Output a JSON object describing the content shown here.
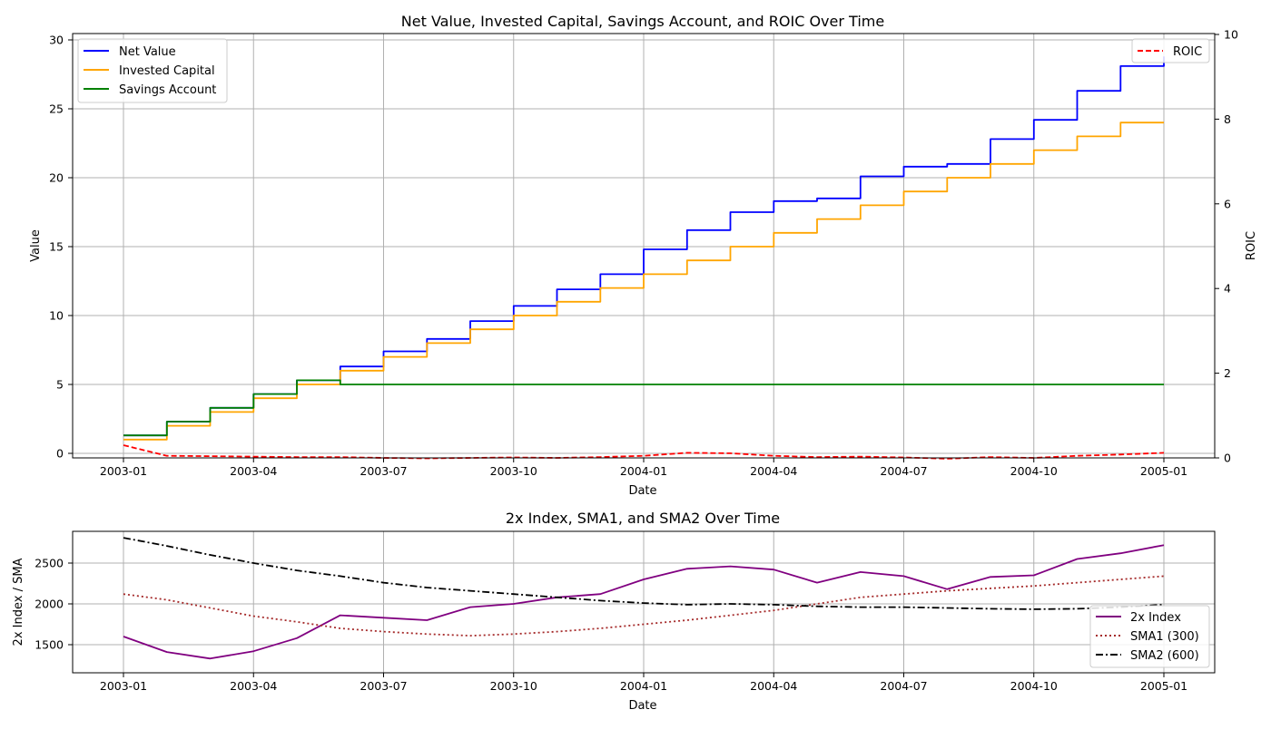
{
  "top_chart": {
    "title": "Net Value, Invested Capital, Savings Account, and ROIC Over Time",
    "xlabel": "Date",
    "ylabel_left": "Value",
    "ylabel_right": "ROIC",
    "x_ticks": [
      "2003-01",
      "2003-04",
      "2003-07",
      "2003-10",
      "2004-01",
      "2004-04",
      "2004-07",
      "2004-10",
      "2005-01"
    ],
    "y_ticks_left": [
      "0",
      "5",
      "10",
      "15",
      "20",
      "25",
      "30"
    ],
    "y_ticks_right": [
      "0",
      "2",
      "4",
      "6",
      "8",
      "10"
    ],
    "legend_left": [
      "Net Value",
      "Invested Capital",
      "Savings Account"
    ],
    "legend_right": [
      "ROIC"
    ]
  },
  "bottom_chart": {
    "title": "2x Index, SMA1, and SMA2 Over Time",
    "xlabel": "Date",
    "ylabel": "2x Index / SMA",
    "x_ticks": [
      "2003-01",
      "2003-04",
      "2003-07",
      "2003-10",
      "2004-01",
      "2004-04",
      "2004-07",
      "2004-10",
      "2005-01"
    ],
    "y_ticks": [
      "1500",
      "2000",
      "2500"
    ],
    "legend": [
      "2x Index",
      "SMA1 (300)",
      "SMA2 (600)"
    ]
  },
  "chart_data": [
    {
      "type": "line",
      "title": "Net Value, Invested Capital, Savings Account, and ROIC Over Time",
      "xlabel": "Date",
      "ylabel": "Value",
      "y2label": "ROIC",
      "ylim": [
        -0.3,
        30.5
      ],
      "y2lim": [
        0,
        10
      ],
      "grid": true,
      "legend_placement": "top-left",
      "legend2_placement": "top-right",
      "x": [
        "2003-01",
        "2003-02",
        "2003-03",
        "2003-04",
        "2003-05",
        "2003-06",
        "2003-07",
        "2003-08",
        "2003-09",
        "2003-10",
        "2003-11",
        "2003-12",
        "2004-01",
        "2004-02",
        "2004-03",
        "2004-04",
        "2004-05",
        "2004-06",
        "2004-07",
        "2004-08",
        "2004-09",
        "2004-10",
        "2004-11",
        "2004-12",
        "2005-01"
      ],
      "series": [
        {
          "name": "Net Value",
          "color": "#0000ff",
          "axis": "left",
          "style": "solid",
          "values": [
            1.3,
            2.3,
            3.3,
            4.3,
            5.3,
            6.3,
            7.4,
            8.3,
            9.6,
            10.7,
            11.9,
            13.0,
            14.8,
            16.2,
            17.5,
            18.3,
            18.5,
            20.1,
            20.8,
            21.0,
            22.8,
            24.2,
            26.3,
            28.1,
            28.8
          ]
        },
        {
          "name": "Invested Capital",
          "color": "#ffa500",
          "axis": "left",
          "style": "solid",
          "values": [
            1,
            2,
            3,
            4,
            5,
            6,
            7,
            8,
            9,
            10,
            11,
            12,
            13,
            14,
            15,
            16,
            17,
            18,
            19,
            20,
            21,
            22,
            23,
            24,
            24
          ]
        },
        {
          "name": "Savings Account",
          "color": "#008000",
          "axis": "left",
          "style": "solid",
          "values": [
            1.3,
            2.3,
            3.3,
            4.3,
            5.3,
            5.0,
            5.0,
            5.0,
            5.0,
            5.0,
            5.0,
            5.0,
            5.0,
            5.0,
            5.0,
            5.0,
            5.0,
            5.0,
            5.0,
            5.0,
            5.0,
            5.0,
            5.0,
            5.0,
            5.0
          ]
        },
        {
          "name": "ROIC",
          "color": "#ff0000",
          "axis": "right",
          "style": "dashed",
          "values": [
            0.3,
            0.05,
            0.04,
            0.03,
            0.02,
            0.02,
            0.0,
            -0.01,
            0.0,
            0.01,
            0.0,
            0.02,
            0.05,
            0.12,
            0.11,
            0.05,
            0.02,
            0.03,
            0.01,
            -0.02,
            0.02,
            0.0,
            0.05,
            0.08,
            0.12
          ]
        }
      ]
    },
    {
      "type": "line",
      "title": "2x Index, SMA1, and SMA2 Over Time",
      "xlabel": "Date",
      "ylabel": "2x Index / SMA",
      "ylim": [
        1150,
        2900
      ],
      "grid": true,
      "legend_placement": "bottom-right",
      "x": [
        "2003-01",
        "2003-02",
        "2003-03",
        "2003-04",
        "2003-05",
        "2003-06",
        "2003-07",
        "2003-08",
        "2003-09",
        "2003-10",
        "2003-11",
        "2003-12",
        "2004-01",
        "2004-02",
        "2004-03",
        "2004-04",
        "2004-05",
        "2004-06",
        "2004-07",
        "2004-08",
        "2004-09",
        "2004-10",
        "2004-11",
        "2004-12",
        "2005-01"
      ],
      "series": [
        {
          "name": "2x Index",
          "color": "#800080",
          "style": "solid",
          "values": [
            1600,
            1410,
            1330,
            1420,
            1580,
            1860,
            1830,
            1800,
            1960,
            2000,
            2080,
            2120,
            2300,
            2430,
            2460,
            2420,
            2260,
            2390,
            2340,
            2180,
            2330,
            2350,
            2550,
            2620,
            2720
          ]
        },
        {
          "name": "SMA1 (300)",
          "color": "#a52a2a",
          "style": "dotted",
          "values": [
            2120,
            2050,
            1950,
            1850,
            1780,
            1700,
            1660,
            1630,
            1610,
            1630,
            1660,
            1700,
            1750,
            1800,
            1860,
            1920,
            2000,
            2080,
            2120,
            2160,
            2190,
            2220,
            2260,
            2300,
            2340
          ]
        },
        {
          "name": "SMA2 (600)",
          "color": "#000000",
          "style": "dashdot",
          "values": [
            2810,
            2710,
            2600,
            2500,
            2410,
            2340,
            2260,
            2200,
            2160,
            2120,
            2080,
            2040,
            2010,
            1990,
            2000,
            1990,
            1970,
            1960,
            1960,
            1950,
            1940,
            1935,
            1940,
            1960,
            1990
          ]
        }
      ]
    }
  ]
}
